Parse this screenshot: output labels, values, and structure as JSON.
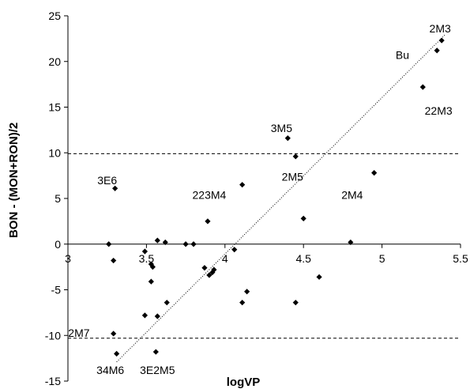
{
  "chart_data": {
    "type": "scatter",
    "title": "",
    "xlabel": "logVP",
    "ylabel": "BON - (MON+RON)/2",
    "xlim": [
      3,
      5.5
    ],
    "ylim": [
      -15,
      25
    ],
    "xticks": [
      "3",
      "3.5",
      "4",
      "4.5",
      "5",
      "5.5"
    ],
    "yticks": [
      "-15",
      "-10",
      "-5",
      "0",
      "5",
      "10",
      "15",
      "20",
      "25"
    ],
    "grid": false,
    "legend": "none",
    "marker_color": "#000000",
    "points": [
      {
        "x": 3.3,
        "y": 6.1
      },
      {
        "x": 3.26,
        "y": 0.0
      },
      {
        "x": 3.29,
        "y": -1.8
      },
      {
        "x": 3.29,
        "y": -9.8
      },
      {
        "x": 3.31,
        "y": -12.0
      },
      {
        "x": 3.49,
        "y": -0.8
      },
      {
        "x": 3.53,
        "y": -2.2
      },
      {
        "x": 3.53,
        "y": -4.1
      },
      {
        "x": 3.54,
        "y": -2.5
      },
      {
        "x": 3.57,
        "y": 0.4
      },
      {
        "x": 3.62,
        "y": 0.2
      },
      {
        "x": 3.49,
        "y": -7.8
      },
      {
        "x": 3.57,
        "y": -7.9
      },
      {
        "x": 3.63,
        "y": -6.4
      },
      {
        "x": 3.56,
        "y": -11.8
      },
      {
        "x": 3.75,
        "y": 0.0
      },
      {
        "x": 3.8,
        "y": 0.0
      },
      {
        "x": 3.87,
        "y": -2.6
      },
      {
        "x": 3.9,
        "y": -3.4
      },
      {
        "x": 3.92,
        "y": -3.1
      },
      {
        "x": 3.93,
        "y": -2.8
      },
      {
        "x": 3.89,
        "y": 2.5
      },
      {
        "x": 4.06,
        "y": -0.6
      },
      {
        "x": 4.11,
        "y": 6.5
      },
      {
        "x": 4.11,
        "y": -6.4
      },
      {
        "x": 4.14,
        "y": -5.2
      },
      {
        "x": 4.4,
        "y": 11.6
      },
      {
        "x": 4.45,
        "y": 9.6
      },
      {
        "x": 4.45,
        "y": -6.4
      },
      {
        "x": 4.5,
        "y": 2.8
      },
      {
        "x": 4.6,
        "y": -3.6
      },
      {
        "x": 4.8,
        "y": 0.2
      },
      {
        "x": 4.95,
        "y": 7.8
      },
      {
        "x": 5.26,
        "y": 17.2
      },
      {
        "x": 5.35,
        "y": 21.2
      },
      {
        "x": 5.38,
        "y": 22.3
      }
    ],
    "trendline": {
      "x": [
        3.31,
        5.4
      ],
      "y": [
        -12.9,
        22.9
      ],
      "style": "dotted"
    },
    "reference_lines": [
      {
        "y": 9.9,
        "style": "dashed"
      },
      {
        "y": -10.3,
        "style": "dashed"
      }
    ],
    "annotations": [
      {
        "text": "2M3",
        "x": 5.37,
        "y": 23.6
      },
      {
        "text": "Bu",
        "x": 5.13,
        "y": 20.7
      },
      {
        "text": "22M3",
        "x": 5.36,
        "y": 14.6
      },
      {
        "text": "3M5",
        "x": 4.36,
        "y": 12.7
      },
      {
        "text": "2M5",
        "x": 4.43,
        "y": 7.4
      },
      {
        "text": "2M4",
        "x": 4.81,
        "y": 5.4
      },
      {
        "text": "223M4",
        "x": 3.9,
        "y": 5.4
      },
      {
        "text": "3E6",
        "x": 3.25,
        "y": 7.0
      },
      {
        "text": "2M7",
        "x": 3.07,
        "y": -9.7
      },
      {
        "text": "34M6",
        "x": 3.27,
        "y": -13.8
      },
      {
        "text": "3E2M5",
        "x": 3.57,
        "y": -13.8
      }
    ]
  }
}
